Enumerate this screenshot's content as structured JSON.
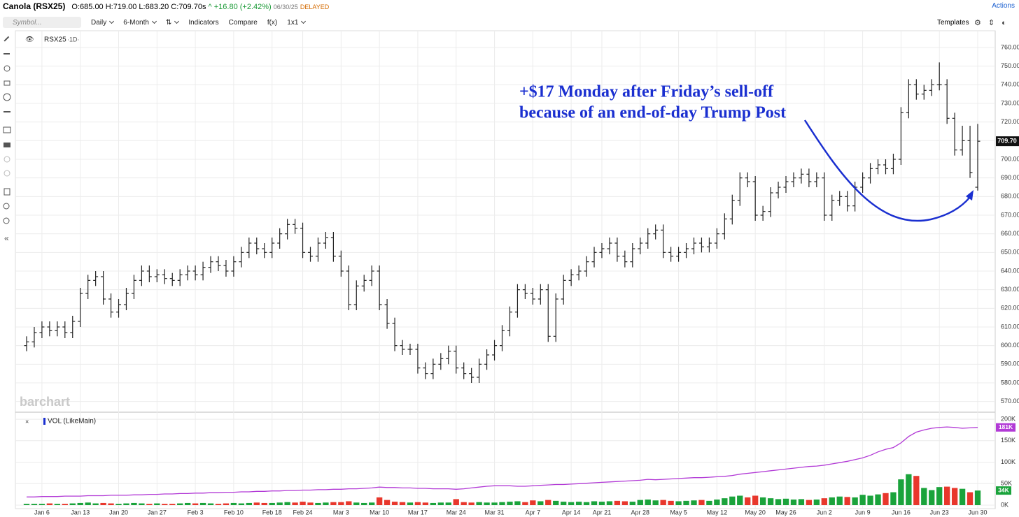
{
  "header": {
    "title": "Canola (RSX25)",
    "ohlc": "O:685.00 H:719.00 L:683.20 C:709.70s",
    "change": "^ +16.80 (+2.42%)",
    "date": "06/30/25",
    "status": "DELAYED",
    "actions": "Actions"
  },
  "toolbar": {
    "symbol": "Symbol...",
    "interval": "Daily",
    "range": "6-Month",
    "indicators": "Indicators",
    "compare": "Compare",
    "fx": "f(x)",
    "layout": "1x1",
    "templates": "Templates"
  },
  "panel": {
    "symbol": "RSX25",
    "period": "·1D·",
    "watermark": "barchart",
    "volume_title": "VOL (LikeMain)"
  },
  "annotation": [
    "+$17 Monday after Friday’s sell-off",
    "because of an end-of-day Trump Post"
  ],
  "chart_data": [
    {
      "type": "ohlc",
      "color": "#222222",
      "open": [
        600,
        602,
        607,
        610,
        608,
        610,
        607,
        613,
        628,
        635,
        637,
        625,
        618,
        622,
        628,
        635,
        640,
        637,
        638,
        636,
        635,
        638,
        640,
        638,
        642,
        645,
        643,
        640,
        645,
        650,
        655,
        652,
        650,
        655,
        660,
        665,
        663,
        650,
        648,
        655,
        658,
        648,
        640,
        622,
        632,
        635,
        640,
        622,
        612,
        600,
        598,
        598,
        588,
        585,
        590,
        593,
        597,
        588,
        585,
        583,
        590,
        595,
        600,
        608,
        618,
        630,
        628,
        625,
        630,
        605,
        625,
        635,
        638,
        640,
        645,
        650,
        652,
        655,
        648,
        645,
        652,
        655,
        660,
        662,
        650,
        648,
        650,
        652,
        655,
        653,
        655,
        660,
        668,
        678,
        690,
        688,
        670,
        672,
        682,
        685,
        688,
        690,
        692,
        688,
        690,
        670,
        678,
        680,
        675,
        685,
        690,
        695,
        697,
        695,
        700,
        725,
        740,
        735,
        737,
        740,
        740,
        722,
        705,
        710,
        685
      ],
      "high": [
        605,
        610,
        613,
        613,
        613,
        613,
        616,
        631,
        638,
        640,
        640,
        628,
        625,
        631,
        638,
        643,
        643,
        641,
        641,
        639,
        641,
        643,
        643,
        645,
        648,
        648,
        646,
        648,
        653,
        658,
        658,
        655,
        658,
        663,
        668,
        668,
        666,
        653,
        658,
        661,
        661,
        651,
        643,
        635,
        638,
        643,
        643,
        625,
        615,
        603,
        601,
        601,
        591,
        593,
        596,
        600,
        600,
        591,
        588,
        593,
        598,
        603,
        611,
        621,
        633,
        633,
        631,
        633,
        633,
        628,
        638,
        641,
        643,
        648,
        653,
        655,
        658,
        658,
        651,
        655,
        658,
        663,
        665,
        665,
        653,
        653,
        655,
        658,
        658,
        658,
        663,
        671,
        681,
        693,
        693,
        691,
        675,
        685,
        688,
        691,
        693,
        695,
        695,
        693,
        693,
        681,
        683,
        683,
        688,
        693,
        698,
        700,
        700,
        703,
        728,
        743,
        743,
        740,
        743,
        752,
        743,
        725,
        718,
        718,
        719
      ],
      "low": [
        597,
        599,
        604,
        605,
        605,
        604,
        604,
        610,
        625,
        632,
        622,
        615,
        615,
        619,
        625,
        632,
        634,
        634,
        633,
        632,
        632,
        635,
        635,
        635,
        639,
        640,
        637,
        637,
        642,
        647,
        649,
        647,
        647,
        652,
        657,
        660,
        647,
        645,
        645,
        652,
        645,
        637,
        619,
        619,
        629,
        632,
        619,
        609,
        597,
        595,
        595,
        585,
        582,
        582,
        587,
        590,
        585,
        582,
        580,
        580,
        587,
        592,
        597,
        605,
        615,
        625,
        622,
        622,
        602,
        602,
        622,
        632,
        635,
        637,
        642,
        647,
        649,
        645,
        642,
        642,
        649,
        652,
        657,
        647,
        645,
        645,
        647,
        649,
        650,
        650,
        652,
        657,
        665,
        675,
        685,
        667,
        667,
        669,
        679,
        682,
        685,
        687,
        685,
        685,
        667,
        667,
        675,
        672,
        672,
        682,
        687,
        692,
        692,
        692,
        697,
        722,
        732,
        732,
        734,
        737,
        719,
        702,
        702,
        690,
        683.2
      ],
      "close": [
        602,
        607,
        610,
        608,
        610,
        607,
        613,
        628,
        635,
        637,
        625,
        618,
        622,
        628,
        635,
        640,
        637,
        638,
        636,
        635,
        638,
        640,
        638,
        642,
        645,
        643,
        640,
        645,
        650,
        655,
        652,
        650,
        655,
        660,
        665,
        663,
        650,
        648,
        655,
        658,
        648,
        640,
        622,
        632,
        635,
        640,
        622,
        612,
        600,
        598,
        598,
        588,
        585,
        590,
        593,
        597,
        588,
        585,
        583,
        590,
        595,
        600,
        608,
        618,
        630,
        628,
        625,
        630,
        605,
        625,
        635,
        638,
        640,
        645,
        650,
        652,
        655,
        648,
        645,
        652,
        655,
        660,
        662,
        650,
        648,
        650,
        652,
        655,
        653,
        655,
        660,
        668,
        678,
        690,
        688,
        670,
        672,
        682,
        685,
        688,
        690,
        692,
        688,
        690,
        670,
        678,
        680,
        675,
        685,
        690,
        695,
        697,
        695,
        700,
        725,
        740,
        735,
        737,
        740,
        740,
        722,
        705,
        710,
        692.9,
        709.7
      ],
      "last_label": "709.70",
      "ylim": [
        565,
        766
      ],
      "yticks": [
        {
          "value": 570,
          "label": "570.00"
        },
        {
          "value": 580,
          "label": "580.00"
        },
        {
          "value": 590,
          "label": "590.00"
        },
        {
          "value": 600,
          "label": "600.00"
        },
        {
          "value": 610,
          "label": "610.00"
        },
        {
          "value": 620,
          "label": "620.00"
        },
        {
          "value": 630,
          "label": "630.00"
        },
        {
          "value": 640,
          "label": "640.00"
        },
        {
          "value": 650,
          "label": "650.00"
        },
        {
          "value": 660,
          "label": "660.00"
        },
        {
          "value": 670,
          "label": "670.00"
        },
        {
          "value": 680,
          "label": "680.00"
        },
        {
          "value": 690,
          "label": "690.00"
        },
        {
          "value": 700,
          "label": "700.00"
        },
        {
          "value": 710,
          "label": "710.00"
        },
        {
          "value": 720,
          "label": "720.00"
        },
        {
          "value": 730,
          "label": "730.00"
        },
        {
          "value": 740,
          "label": "740.00"
        },
        {
          "value": 750,
          "label": "750.00"
        },
        {
          "value": 760,
          "label": "760.00"
        }
      ],
      "xticks": [
        {
          "value": 2,
          "label": "Jan 6"
        },
        {
          "value": 7,
          "label": "Jan 13"
        },
        {
          "value": 12,
          "label": "Jan 20"
        },
        {
          "value": 17,
          "label": "Jan 27"
        },
        {
          "value": 22,
          "label": "Feb 3"
        },
        {
          "value": 27,
          "label": "Feb 10"
        },
        {
          "value": 32,
          "label": "Feb 18"
        },
        {
          "value": 36,
          "label": "Feb 24"
        },
        {
          "value": 41,
          "label": "Mar 3"
        },
        {
          "value": 46,
          "label": "Mar 10"
        },
        {
          "value": 51,
          "label": "Mar 17"
        },
        {
          "value": 56,
          "label": "Mar 24"
        },
        {
          "value": 61,
          "label": "Mar 31"
        },
        {
          "value": 66,
          "label": "Apr 7"
        },
        {
          "value": 71,
          "label": "Apr 14"
        },
        {
          "value": 75,
          "label": "Apr 21"
        },
        {
          "value": 80,
          "label": "Apr 28"
        },
        {
          "value": 85,
          "label": "May 5"
        },
        {
          "value": 90,
          "label": "May 12"
        },
        {
          "value": 95,
          "label": "May 20"
        },
        {
          "value": 99,
          "label": "May 26"
        },
        {
          "value": 104,
          "label": "Jun 2"
        },
        {
          "value": 109,
          "label": "Jun 9"
        },
        {
          "value": 114,
          "label": "Jun 16"
        },
        {
          "value": 119,
          "label": "Jun 23"
        },
        {
          "value": 124,
          "label": "Jun 30"
        }
      ],
      "grid": true
    },
    {
      "type": "bar",
      "up_color": "#1aa33b",
      "down_color": "#e8372c",
      "series": [
        {
          "name": "VOL",
          "values": [
            3000,
            3000,
            3000,
            4000,
            3000,
            3000,
            4000,
            5000,
            6000,
            4000,
            5000,
            4000,
            3000,
            4000,
            5000,
            4000,
            3000,
            4000,
            3000,
            3000,
            4000,
            5000,
            4000,
            5000,
            4000,
            3000,
            4000,
            5000,
            4000,
            5000,
            6000,
            5000,
            5000,
            6000,
            7000,
            6000,
            8000,
            6000,
            5000,
            6000,
            7000,
            7000,
            9000,
            6000,
            5000,
            6000,
            18000,
            12000,
            8000,
            7000,
            6000,
            7000,
            6000,
            5000,
            6000,
            6000,
            14000,
            7000,
            6000,
            7000,
            6000,
            6000,
            7000,
            8000,
            9000,
            7000,
            11000,
            9000,
            12000,
            10000,
            8000,
            7000,
            8000,
            7000,
            9000,
            8000,
            9000,
            10000,
            9000,
            8000,
            12000,
            13000,
            11000,
            12000,
            10000,
            9000,
            10000,
            11000,
            12000,
            10000,
            13000,
            16000,
            20000,
            22000,
            18000,
            22000,
            18000,
            16000,
            14000,
            15000,
            13000,
            14000,
            12000,
            13000,
            16000,
            18000,
            20000,
            19000,
            18000,
            24000,
            22000,
            25000,
            28000,
            30000,
            60000,
            72000,
            68000,
            40000,
            35000,
            42000,
            43000,
            40000,
            38000,
            30000,
            34000
          ],
          "last_label": "34K"
        },
        {
          "name": "LikeMain",
          "color": "#b23ad6",
          "values": [
            19000,
            19000,
            20000,
            20000,
            20000,
            21000,
            21000,
            21000,
            22000,
            22000,
            22000,
            23000,
            23000,
            23000,
            24000,
            24000,
            25000,
            25000,
            26000,
            26000,
            27000,
            27000,
            28000,
            28000,
            29000,
            29000,
            30000,
            30000,
            31000,
            31000,
            32000,
            32000,
            33000,
            33000,
            34000,
            34000,
            35000,
            35000,
            36000,
            36000,
            37000,
            37000,
            38000,
            38000,
            39000,
            40000,
            42000,
            41000,
            41000,
            40000,
            40000,
            39000,
            39000,
            38000,
            38000,
            38000,
            37000,
            38000,
            40000,
            42000,
            44000,
            45000,
            45000,
            45000,
            44000,
            44000,
            45000,
            46000,
            47000,
            48000,
            48000,
            49000,
            50000,
            51000,
            52000,
            53000,
            54000,
            55000,
            56000,
            57000,
            58000,
            60000,
            59000,
            60000,
            61000,
            62000,
            63000,
            64000,
            64000,
            65000,
            66000,
            67000,
            69000,
            72000,
            74000,
            76000,
            78000,
            80000,
            82000,
            84000,
            86000,
            88000,
            90000,
            91000,
            93000,
            96000,
            99000,
            102000,
            106000,
            110000,
            116000,
            124000,
            130000,
            134000,
            145000,
            160000,
            170000,
            175000,
            179000,
            181000,
            182000,
            181000,
            179000,
            180000,
            181000
          ],
          "last_label": "181K"
        }
      ],
      "ylim": [
        -6500,
        205000
      ],
      "yticks": [
        {
          "value": 0,
          "label": "0K"
        },
        {
          "value": 50000,
          "label": "50K"
        },
        {
          "value": 100000,
          "label": "100K"
        },
        {
          "value": 150000,
          "label": "150K"
        },
        {
          "value": 200000,
          "label": "200K"
        }
      ],
      "grid": true
    }
  ]
}
